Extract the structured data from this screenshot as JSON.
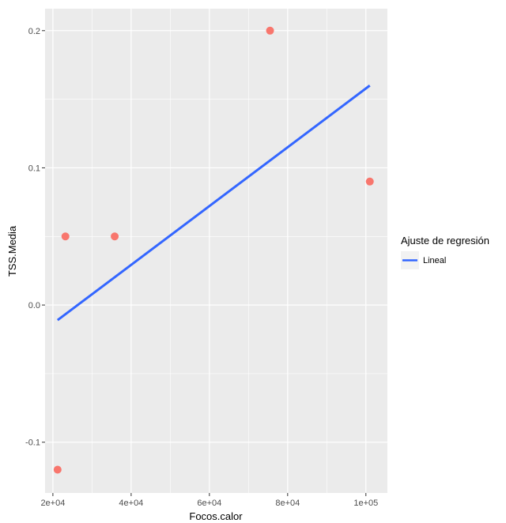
{
  "chart_data": {
    "type": "scatter",
    "xlabel": "Focos.calor",
    "ylabel": "TSS.Media",
    "xlim": [
      18000,
      105500
    ],
    "ylim": [
      -0.137,
      0.216
    ],
    "x_ticks": [
      {
        "value": 20000,
        "label": "2e+04"
      },
      {
        "value": 40000,
        "label": "4e+04"
      },
      {
        "value": 60000,
        "label": "6e+04"
      },
      {
        "value": 80000,
        "label": "8e+04"
      },
      {
        "value": 100000,
        "label": "1e+05"
      }
    ],
    "y_ticks": [
      {
        "value": -0.1,
        "label": "-0.1"
      },
      {
        "value": 0.0,
        "label": "0.0"
      },
      {
        "value": 0.1,
        "label": "0.1"
      },
      {
        "value": 0.2,
        "label": "0.2"
      }
    ],
    "grid": true,
    "points": {
      "x": [
        21200,
        23200,
        35800,
        75500,
        101000
      ],
      "y": [
        -0.12,
        0.05,
        0.05,
        0.2,
        0.09
      ]
    },
    "regression": {
      "name": "Lineal",
      "x": [
        21200,
        101000
      ],
      "y": [
        -0.011,
        0.16
      ]
    },
    "legend": {
      "title": "Ajuste de regresión",
      "position": "right"
    },
    "colors": {
      "panel": "#ebebeb",
      "grid": "#ffffff",
      "point": "#f8766d",
      "line": "#3366ff",
      "legend_key": "#f2f2f2"
    }
  }
}
